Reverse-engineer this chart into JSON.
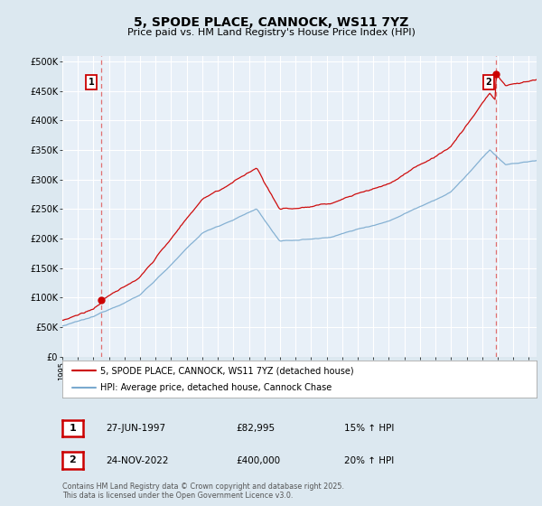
{
  "title": "5, SPODE PLACE, CANNOCK, WS11 7YZ",
  "subtitle": "Price paid vs. HM Land Registry's House Price Index (HPI)",
  "legend_line1": "5, SPODE PLACE, CANNOCK, WS11 7YZ (detached house)",
  "legend_line2": "HPI: Average price, detached house, Cannock Chase",
  "annotation1_date": "27-JUN-1997",
  "annotation1_price": "£82,995",
  "annotation1_hpi": "15% ↑ HPI",
  "annotation2_date": "24-NOV-2022",
  "annotation2_price": "£400,000",
  "annotation2_hpi": "20% ↑ HPI",
  "footnote": "Contains HM Land Registry data © Crown copyright and database right 2025.\nThis data is licensed under the Open Government Licence v3.0.",
  "red_color": "#cc0000",
  "blue_color": "#7aaacf",
  "dashed_color": "#e07070",
  "bg_color": "#dce8f0",
  "plot_bg_color": "#e8f0f8",
  "box_color": "#cc0000",
  "ylim": [
    0,
    510000
  ],
  "ytick_vals": [
    0,
    50000,
    100000,
    150000,
    200000,
    250000,
    300000,
    350000,
    400000,
    450000,
    500000
  ],
  "ytick_labels": [
    "£0",
    "£50K",
    "£100K",
    "£150K",
    "£200K",
    "£250K",
    "£300K",
    "£350K",
    "£400K",
    "£450K",
    "£500K"
  ],
  "year_start": 1995,
  "year_end": 2025,
  "purchase1_year": 1997.48,
  "purchase1_price": 82995,
  "purchase2_year": 2022.9,
  "purchase2_price": 400000
}
